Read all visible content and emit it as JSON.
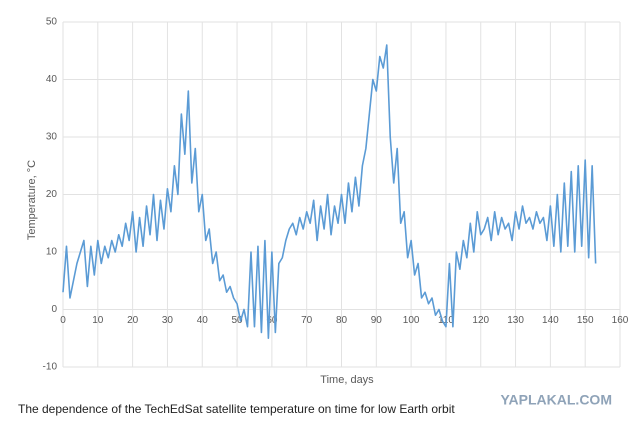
{
  "chart_data": {
    "type": "line",
    "ylabel": "Temperature, °C",
    "xlabel": "Time, days",
    "caption": "The dependence of the TechEdSat satellite temperature on time for low Earth orbit",
    "watermark": "YAPLAKAL.COM",
    "xlim": [
      0,
      160
    ],
    "ylim": [
      -10,
      50
    ],
    "xticks": [
      0,
      10,
      20,
      30,
      40,
      50,
      60,
      70,
      80,
      90,
      100,
      110,
      120,
      130,
      140,
      150,
      160
    ],
    "yticks": [
      -10,
      0,
      10,
      20,
      30,
      40,
      50
    ],
    "grid": true,
    "x": [
      0,
      1,
      2,
      3,
      4,
      5,
      6,
      7,
      8,
      9,
      10,
      11,
      12,
      13,
      14,
      15,
      16,
      17,
      18,
      19,
      20,
      21,
      22,
      23,
      24,
      25,
      26,
      27,
      28,
      29,
      30,
      31,
      32,
      33,
      34,
      35,
      36,
      37,
      38,
      39,
      40,
      41,
      42,
      43,
      44,
      45,
      46,
      47,
      48,
      49,
      50,
      51,
      52,
      53,
      54,
      55,
      56,
      57,
      58,
      59,
      60,
      61,
      62,
      63,
      64,
      65,
      66,
      67,
      68,
      69,
      70,
      71,
      72,
      73,
      74,
      75,
      76,
      77,
      78,
      79,
      80,
      81,
      82,
      83,
      84,
      85,
      86,
      87,
      88,
      89,
      90,
      91,
      92,
      93,
      94,
      95,
      96,
      97,
      98,
      99,
      100,
      101,
      102,
      103,
      104,
      105,
      106,
      107,
      108,
      109,
      110,
      111,
      112,
      113,
      114,
      115,
      116,
      117,
      118,
      119,
      120,
      121,
      122,
      123,
      124,
      125,
      126,
      127,
      128,
      129,
      130,
      131,
      132,
      133,
      134,
      135,
      136,
      137,
      138,
      139,
      140,
      141,
      142,
      143,
      144,
      145,
      146,
      147,
      148,
      149,
      150,
      151,
      152,
      153
    ],
    "series": [
      {
        "color": "#5b9bd5",
        "values": [
          3,
          11,
          2,
          5,
          8,
          10,
          12,
          4,
          11,
          6,
          12,
          8,
          11,
          9,
          12,
          10,
          13,
          11,
          15,
          12,
          17,
          10,
          16,
          11,
          18,
          13,
          20,
          12,
          19,
          14,
          21,
          17,
          25,
          20,
          34,
          27,
          38,
          22,
          28,
          17,
          20,
          12,
          14,
          8,
          10,
          5,
          6,
          3,
          4,
          2,
          1,
          -2,
          0,
          -3,
          10,
          -3,
          11,
          -4,
          12,
          -5,
          10,
          -4,
          8,
          9,
          12,
          14,
          15,
          13,
          16,
          14,
          17,
          15,
          19,
          12,
          18,
          14,
          20,
          13,
          18,
          15,
          20,
          15,
          22,
          17,
          23,
          18,
          25,
          28,
          34,
          40,
          38,
          44,
          42,
          46,
          30,
          22,
          28,
          15,
          17,
          9,
          12,
          6,
          8,
          2,
          3,
          1,
          2,
          -1,
          0,
          -2,
          -3,
          8,
          -3,
          10,
          7,
          12,
          9,
          15,
          10,
          17,
          13,
          14,
          16,
          12,
          17,
          13,
          16,
          14,
          15,
          12,
          17,
          14,
          18,
          15,
          16,
          14,
          17,
          15,
          16,
          12,
          18,
          11,
          20,
          10,
          22,
          11,
          24,
          10,
          25,
          11,
          26,
          9,
          25,
          8
        ]
      }
    ]
  }
}
